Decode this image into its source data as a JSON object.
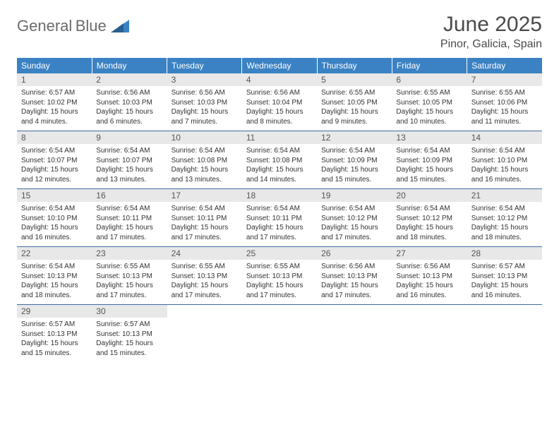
{
  "logo": {
    "word1": "General",
    "word2": "Blue"
  },
  "title": "June 2025",
  "subtitle": "Pinor, Galicia, Spain",
  "colors": {
    "header_bg": "#3b82c4",
    "header_text": "#ffffff",
    "daynum_bg": "#e8e8e8",
    "daynum_text": "#555555",
    "border": "#3b6ea0",
    "body_bg": "#ffffff",
    "text": "#333333",
    "logo_gray": "#6b6b6b",
    "logo_blue": "#3b82c4"
  },
  "typography": {
    "title_fontsize": 30,
    "subtitle_fontsize": 16,
    "weekday_fontsize": 12,
    "daynum_fontsize": 12,
    "cell_fontsize": 10
  },
  "weekdays": [
    "Sunday",
    "Monday",
    "Tuesday",
    "Wednesday",
    "Thursday",
    "Friday",
    "Saturday"
  ],
  "days": [
    {
      "n": 1,
      "sunrise": "6:57 AM",
      "sunset": "10:02 PM",
      "daylight": "15 hours and 4 minutes."
    },
    {
      "n": 2,
      "sunrise": "6:56 AM",
      "sunset": "10:03 PM",
      "daylight": "15 hours and 6 minutes."
    },
    {
      "n": 3,
      "sunrise": "6:56 AM",
      "sunset": "10:03 PM",
      "daylight": "15 hours and 7 minutes."
    },
    {
      "n": 4,
      "sunrise": "6:56 AM",
      "sunset": "10:04 PM",
      "daylight": "15 hours and 8 minutes."
    },
    {
      "n": 5,
      "sunrise": "6:55 AM",
      "sunset": "10:05 PM",
      "daylight": "15 hours and 9 minutes."
    },
    {
      "n": 6,
      "sunrise": "6:55 AM",
      "sunset": "10:05 PM",
      "daylight": "15 hours and 10 minutes."
    },
    {
      "n": 7,
      "sunrise": "6:55 AM",
      "sunset": "10:06 PM",
      "daylight": "15 hours and 11 minutes."
    },
    {
      "n": 8,
      "sunrise": "6:54 AM",
      "sunset": "10:07 PM",
      "daylight": "15 hours and 12 minutes."
    },
    {
      "n": 9,
      "sunrise": "6:54 AM",
      "sunset": "10:07 PM",
      "daylight": "15 hours and 13 minutes."
    },
    {
      "n": 10,
      "sunrise": "6:54 AM",
      "sunset": "10:08 PM",
      "daylight": "15 hours and 13 minutes."
    },
    {
      "n": 11,
      "sunrise": "6:54 AM",
      "sunset": "10:08 PM",
      "daylight": "15 hours and 14 minutes."
    },
    {
      "n": 12,
      "sunrise": "6:54 AM",
      "sunset": "10:09 PM",
      "daylight": "15 hours and 15 minutes."
    },
    {
      "n": 13,
      "sunrise": "6:54 AM",
      "sunset": "10:09 PM",
      "daylight": "15 hours and 15 minutes."
    },
    {
      "n": 14,
      "sunrise": "6:54 AM",
      "sunset": "10:10 PM",
      "daylight": "15 hours and 16 minutes."
    },
    {
      "n": 15,
      "sunrise": "6:54 AM",
      "sunset": "10:10 PM",
      "daylight": "15 hours and 16 minutes."
    },
    {
      "n": 16,
      "sunrise": "6:54 AM",
      "sunset": "10:11 PM",
      "daylight": "15 hours and 17 minutes."
    },
    {
      "n": 17,
      "sunrise": "6:54 AM",
      "sunset": "10:11 PM",
      "daylight": "15 hours and 17 minutes."
    },
    {
      "n": 18,
      "sunrise": "6:54 AM",
      "sunset": "10:11 PM",
      "daylight": "15 hours and 17 minutes."
    },
    {
      "n": 19,
      "sunrise": "6:54 AM",
      "sunset": "10:12 PM",
      "daylight": "15 hours and 17 minutes."
    },
    {
      "n": 20,
      "sunrise": "6:54 AM",
      "sunset": "10:12 PM",
      "daylight": "15 hours and 18 minutes."
    },
    {
      "n": 21,
      "sunrise": "6:54 AM",
      "sunset": "10:12 PM",
      "daylight": "15 hours and 18 minutes."
    },
    {
      "n": 22,
      "sunrise": "6:54 AM",
      "sunset": "10:13 PM",
      "daylight": "15 hours and 18 minutes."
    },
    {
      "n": 23,
      "sunrise": "6:55 AM",
      "sunset": "10:13 PM",
      "daylight": "15 hours and 17 minutes."
    },
    {
      "n": 24,
      "sunrise": "6:55 AM",
      "sunset": "10:13 PM",
      "daylight": "15 hours and 17 minutes."
    },
    {
      "n": 25,
      "sunrise": "6:55 AM",
      "sunset": "10:13 PM",
      "daylight": "15 hours and 17 minutes."
    },
    {
      "n": 26,
      "sunrise": "6:56 AM",
      "sunset": "10:13 PM",
      "daylight": "15 hours and 17 minutes."
    },
    {
      "n": 27,
      "sunrise": "6:56 AM",
      "sunset": "10:13 PM",
      "daylight": "15 hours and 16 minutes."
    },
    {
      "n": 28,
      "sunrise": "6:57 AM",
      "sunset": "10:13 PM",
      "daylight": "15 hours and 16 minutes."
    },
    {
      "n": 29,
      "sunrise": "6:57 AM",
      "sunset": "10:13 PM",
      "daylight": "15 hours and 15 minutes."
    },
    {
      "n": 30,
      "sunrise": "6:57 AM",
      "sunset": "10:13 PM",
      "daylight": "15 hours and 15 minutes."
    }
  ],
  "labels": {
    "sunrise": "Sunrise:",
    "sunset": "Sunset:",
    "daylight": "Daylight:"
  },
  "layout": {
    "first_weekday_index": 0,
    "trailing_empty": 5
  }
}
